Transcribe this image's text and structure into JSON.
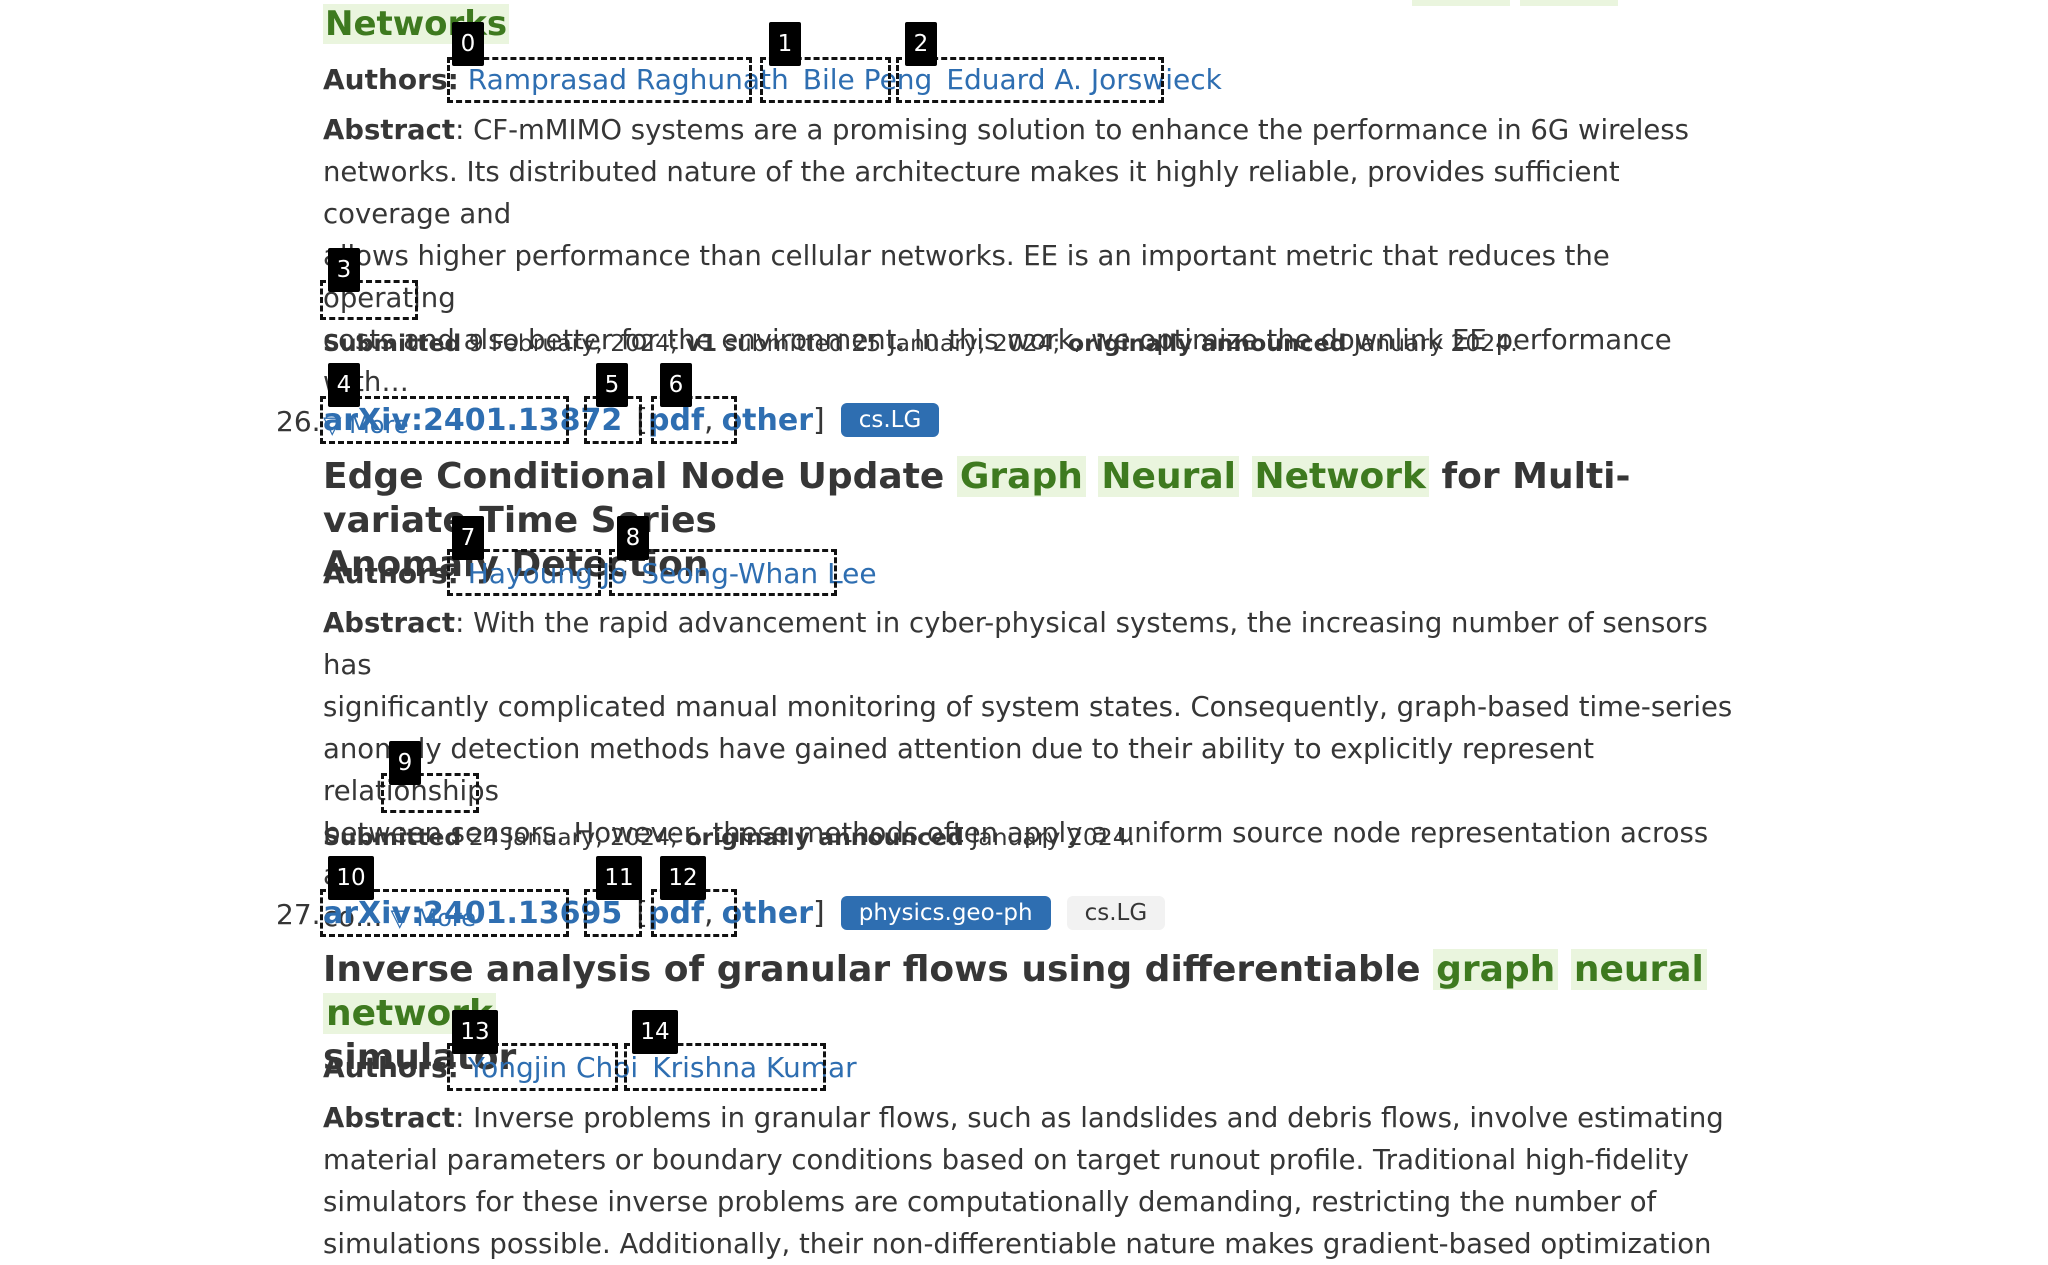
{
  "top": {
    "title_tail": "Networks",
    "authors_label": "Authors:",
    "authors": [
      "Ramprasad Raghunath",
      "Bile Peng",
      "Eduard A. Jorswieck"
    ],
    "abstract_label": "Abstract",
    "abstract_lines": [
      ": CF-mMIMO systems are a promising solution to enhance the performance in 6G wireless",
      "networks. Its distributed nature of the architecture makes it highly reliable, provides sufficient coverage and",
      "allows higher performance than cellular networks. EE is an important metric that reduces the operating",
      "costs and also better for the environment. In this work, we optimize the downlink EE performance with…"
    ],
    "more_label": "▽ More",
    "submitted_label": "Submitted",
    "submitted_date": "9 February, 2024;",
    "v1_label": "v1",
    "v1_text": "submitted 25 January, 2024;",
    "announced_label": "originally announced",
    "announced_date": "January 2024."
  },
  "papers": [
    {
      "index": "26.",
      "arxiv_id": "arXiv:2401.13872",
      "pdf_label": "pdf",
      "other_label": "other",
      "tags": [
        "cs.LG"
      ],
      "title_pre": "Edge Conditional Node Update ",
      "title_hl": [
        "Graph",
        "Neural",
        "Network"
      ],
      "title_post": " for Multi-variate Time Series",
      "title_line2": "Anomaly Detection",
      "authors_label": "Authors:",
      "authors": [
        "Hayoung Jo",
        "Seong-Whan Lee"
      ],
      "abstract_label": "Abstract",
      "abstract_lines": [
        ": With the rapid advancement in cyber-physical systems, the increasing number of sensors has",
        "significantly complicated manual monitoring of system states. Consequently, graph-based time-series",
        "anomaly detection methods have gained attention due to their ability to explicitly represent relationships",
        "between sensors. However, these methods often apply a uniform source node representation across all",
        "co…"
      ],
      "more_label": "▽ More",
      "submitted_label": "Submitted",
      "submitted_date": "24 January, 2024;",
      "announced_label": "originally announced",
      "announced_date": "January 2024."
    },
    {
      "index": "27.",
      "arxiv_id": "arXiv:2401.13695",
      "pdf_label": "pdf",
      "other_label": "other",
      "tags": [
        "physics.geo-ph",
        "cs.LG"
      ],
      "title_pre": "Inverse analysis of granular flows using differentiable ",
      "title_hl": [
        "graph",
        "neural",
        "network"
      ],
      "title_post": "",
      "title_line2": "simulator",
      "authors_label": "Authors:",
      "authors": [
        "Yongjin Choi",
        "Krishna Kumar"
      ],
      "abstract_label": "Abstract",
      "abstract_lines": [
        ": Inverse problems in granular flows, such as landslides and debris flows, involve estimating",
        "material parameters or boundary conditions based on target runout profile. Traditional high-fidelity",
        "simulators for these inverse problems are computationally demanding, restricting the number of",
        "simulations possible. Additionally, their non-differentiable nature makes gradient-based optimization"
      ]
    }
  ],
  "markers": [
    "0",
    "1",
    "2",
    "3",
    "4",
    "5",
    "6",
    "7",
    "8",
    "9",
    "10",
    "11",
    "12",
    "13",
    "14"
  ]
}
